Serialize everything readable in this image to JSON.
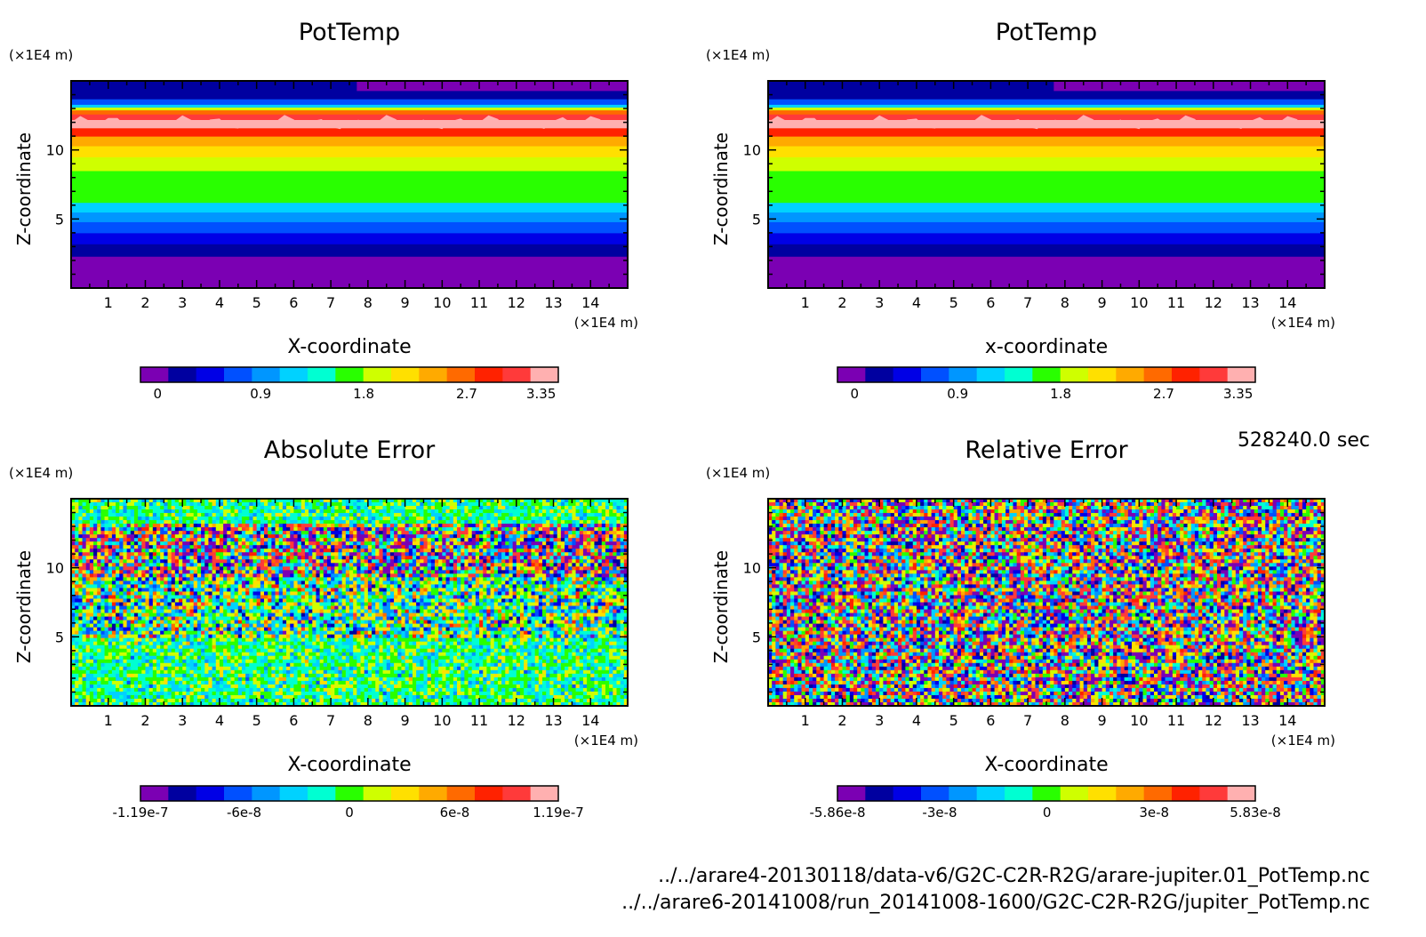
{
  "timestamp": "528240.0 sec",
  "files": [
    "../../arare4-20130118/data-v6/G2C-C2R-R2G/arare-jupiter.01_PotTemp.nc",
    "../../arare6-20141008/run_20141008-1600/G2C-C2R-R2G/jupiter_PotTemp.nc"
  ],
  "chart_data": [
    {
      "type": "heatmap",
      "title": "PotTemp",
      "xlabel": "X-coordinate",
      "ylabel": "Z-coordinate",
      "x_unit": "(×1E4 m)",
      "y_unit": "(×1E4 m)",
      "xlim": [
        0,
        15
      ],
      "ylim": [
        0,
        15
      ],
      "x_ticks": [
        1,
        2,
        3,
        4,
        5,
        6,
        7,
        8,
        9,
        10,
        11,
        12,
        13,
        14
      ],
      "y_ticks": [
        5,
        10
      ],
      "field": "layered",
      "colorbar": {
        "labels": [
          "0",
          "0.9",
          "1.8",
          "2.7",
          "3.35"
        ],
        "values": [
          0,
          0.9,
          1.8,
          2.7,
          3.35
        ],
        "min": -0.15,
        "max": 3.5
      }
    },
    {
      "type": "heatmap",
      "title": "PotTemp",
      "xlabel": "x-coordinate",
      "ylabel": "Z-coordinate",
      "x_unit": "(×1E4 m)",
      "y_unit": "(×1E4 m)",
      "xlim": [
        0,
        15
      ],
      "ylim": [
        0,
        15
      ],
      "x_ticks": [
        1,
        2,
        3,
        4,
        5,
        6,
        7,
        8,
        9,
        10,
        11,
        12,
        13,
        14
      ],
      "y_ticks": [
        5,
        10
      ],
      "field": "layered",
      "colorbar": {
        "labels": [
          "0",
          "0.9",
          "1.8",
          "2.7",
          "3.35"
        ],
        "values": [
          0,
          0.9,
          1.8,
          2.7,
          3.35
        ],
        "min": -0.15,
        "max": 3.5
      }
    },
    {
      "type": "heatmap",
      "title": "Absolute Error",
      "xlabel": "X-coordinate",
      "ylabel": "Z-coordinate",
      "x_unit": "(×1E4 m)",
      "y_unit": "(×1E4 m)",
      "xlim": [
        0,
        15
      ],
      "ylim": [
        0,
        15
      ],
      "x_ticks": [
        1,
        2,
        3,
        4,
        5,
        6,
        7,
        8,
        9,
        10,
        11,
        12,
        13,
        14
      ],
      "y_ticks": [
        5,
        10
      ],
      "field": "noise-banded",
      "colorbar": {
        "labels": [
          "-1.19e-7",
          "-6e-8",
          "0",
          "6e-8",
          "1.19e-7"
        ],
        "values": [
          -1.19e-07,
          -6e-08,
          0,
          6e-08,
          1.19e-07
        ],
        "min": -1.19e-07,
        "max": 1.19e-07
      }
    },
    {
      "type": "heatmap",
      "title": "Relative Error",
      "xlabel": "X-coordinate",
      "ylabel": "Z-coordinate",
      "x_unit": "(×1E4 m)",
      "y_unit": "(×1E4 m)",
      "xlim": [
        0,
        15
      ],
      "ylim": [
        0,
        15
      ],
      "x_ticks": [
        1,
        2,
        3,
        4,
        5,
        6,
        7,
        8,
        9,
        10,
        11,
        12,
        13,
        14
      ],
      "y_ticks": [
        5,
        10
      ],
      "field": "noise",
      "colorbar": {
        "labels": [
          "-5.86e-8",
          "-3e-8",
          "0",
          "3e-8",
          "5.83e-8"
        ],
        "values": [
          -5.86e-08,
          -3e-08,
          0,
          3e-08,
          5.83e-08
        ],
        "min": -5.86e-08,
        "max": 5.83e-08
      }
    }
  ],
  "palette": [
    "#7b00b3",
    "#0000a0",
    "#0000e6",
    "#0050ff",
    "#0096ff",
    "#00d2ff",
    "#00ffd2",
    "#29ff00",
    "#cfff00",
    "#ffe000",
    "#ffaa00",
    "#ff6a00",
    "#ff2200",
    "#ff3a3a",
    "#ffb0b0"
  ]
}
